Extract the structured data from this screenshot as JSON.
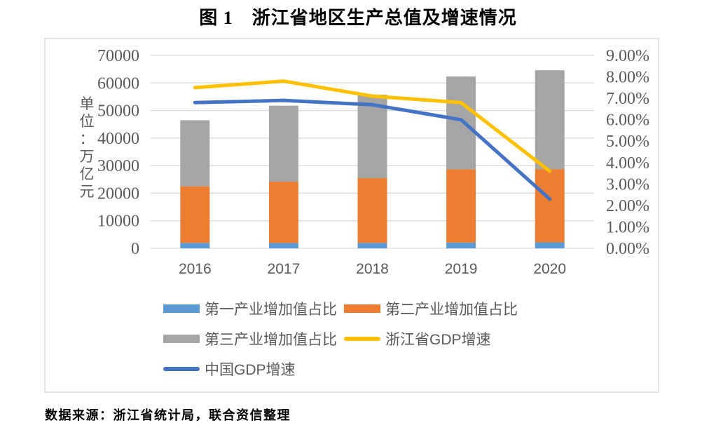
{
  "figure": {
    "title": "图 1　浙江省地区生产总值及增速情况",
    "unit_label": "单位：万亿元",
    "source_note": "数据来源：浙江省统计局，联合资信整理"
  },
  "chart_data": {
    "type": "bar",
    "subtype": "stacked-bar-with-dual-axis-lines",
    "title": "图 1　浙江省地区生产总值及增速情况",
    "categories": [
      "2016",
      "2017",
      "2018",
      "2019",
      "2020"
    ],
    "bar_series": [
      {
        "key": "primary-industry",
        "name": "第一产业增加值占比",
        "color": "#5B9BD5",
        "values": [
          1966,
          1934,
          1967,
          2097,
          2169
        ]
      },
      {
        "key": "secondary-industry",
        "name": "第二产业增加值占比",
        "color": "#ED7D31",
        "values": [
          20518,
          22232,
          23506,
          26567,
          26567
        ]
      },
      {
        "key": "tertiary-industry",
        "name": "第三产业增加值占比",
        "color": "#A5A5A5",
        "values": [
          24001,
          27602,
          30309,
          33688,
          35877
        ]
      }
    ],
    "bar_totals": [
      46485,
      51768,
      55782,
      62352,
      64613
    ],
    "line_series": [
      {
        "key": "zhejiang-gdp-growth",
        "name": "浙江省GDP增速",
        "color": "#FFC000",
        "values_pct": [
          7.5,
          7.8,
          7.1,
          6.8,
          3.6
        ]
      },
      {
        "key": "china-gdp-growth",
        "name": "中国GDP增速",
        "color": "#4472C4",
        "values_pct": [
          6.8,
          6.9,
          6.7,
          6.0,
          2.3
        ]
      }
    ],
    "left_axis": {
      "title": "单位：万亿元",
      "min": 0,
      "max": 70000,
      "step": 10000,
      "tick_labels": [
        "0",
        "10000",
        "20000",
        "30000",
        "40000",
        "50000",
        "60000",
        "70000"
      ]
    },
    "right_axis": {
      "min": 0,
      "max": 9,
      "step": 1,
      "format": "percent",
      "tick_labels": [
        "0.00%",
        "1.00%",
        "2.00%",
        "3.00%",
        "4.00%",
        "5.00%",
        "6.00%",
        "7.00%",
        "8.00%",
        "9.00%"
      ]
    },
    "grid": true,
    "gridline_color": "#D9D9D9",
    "axis_text_color": "#595959",
    "legend_position": "bottom"
  }
}
